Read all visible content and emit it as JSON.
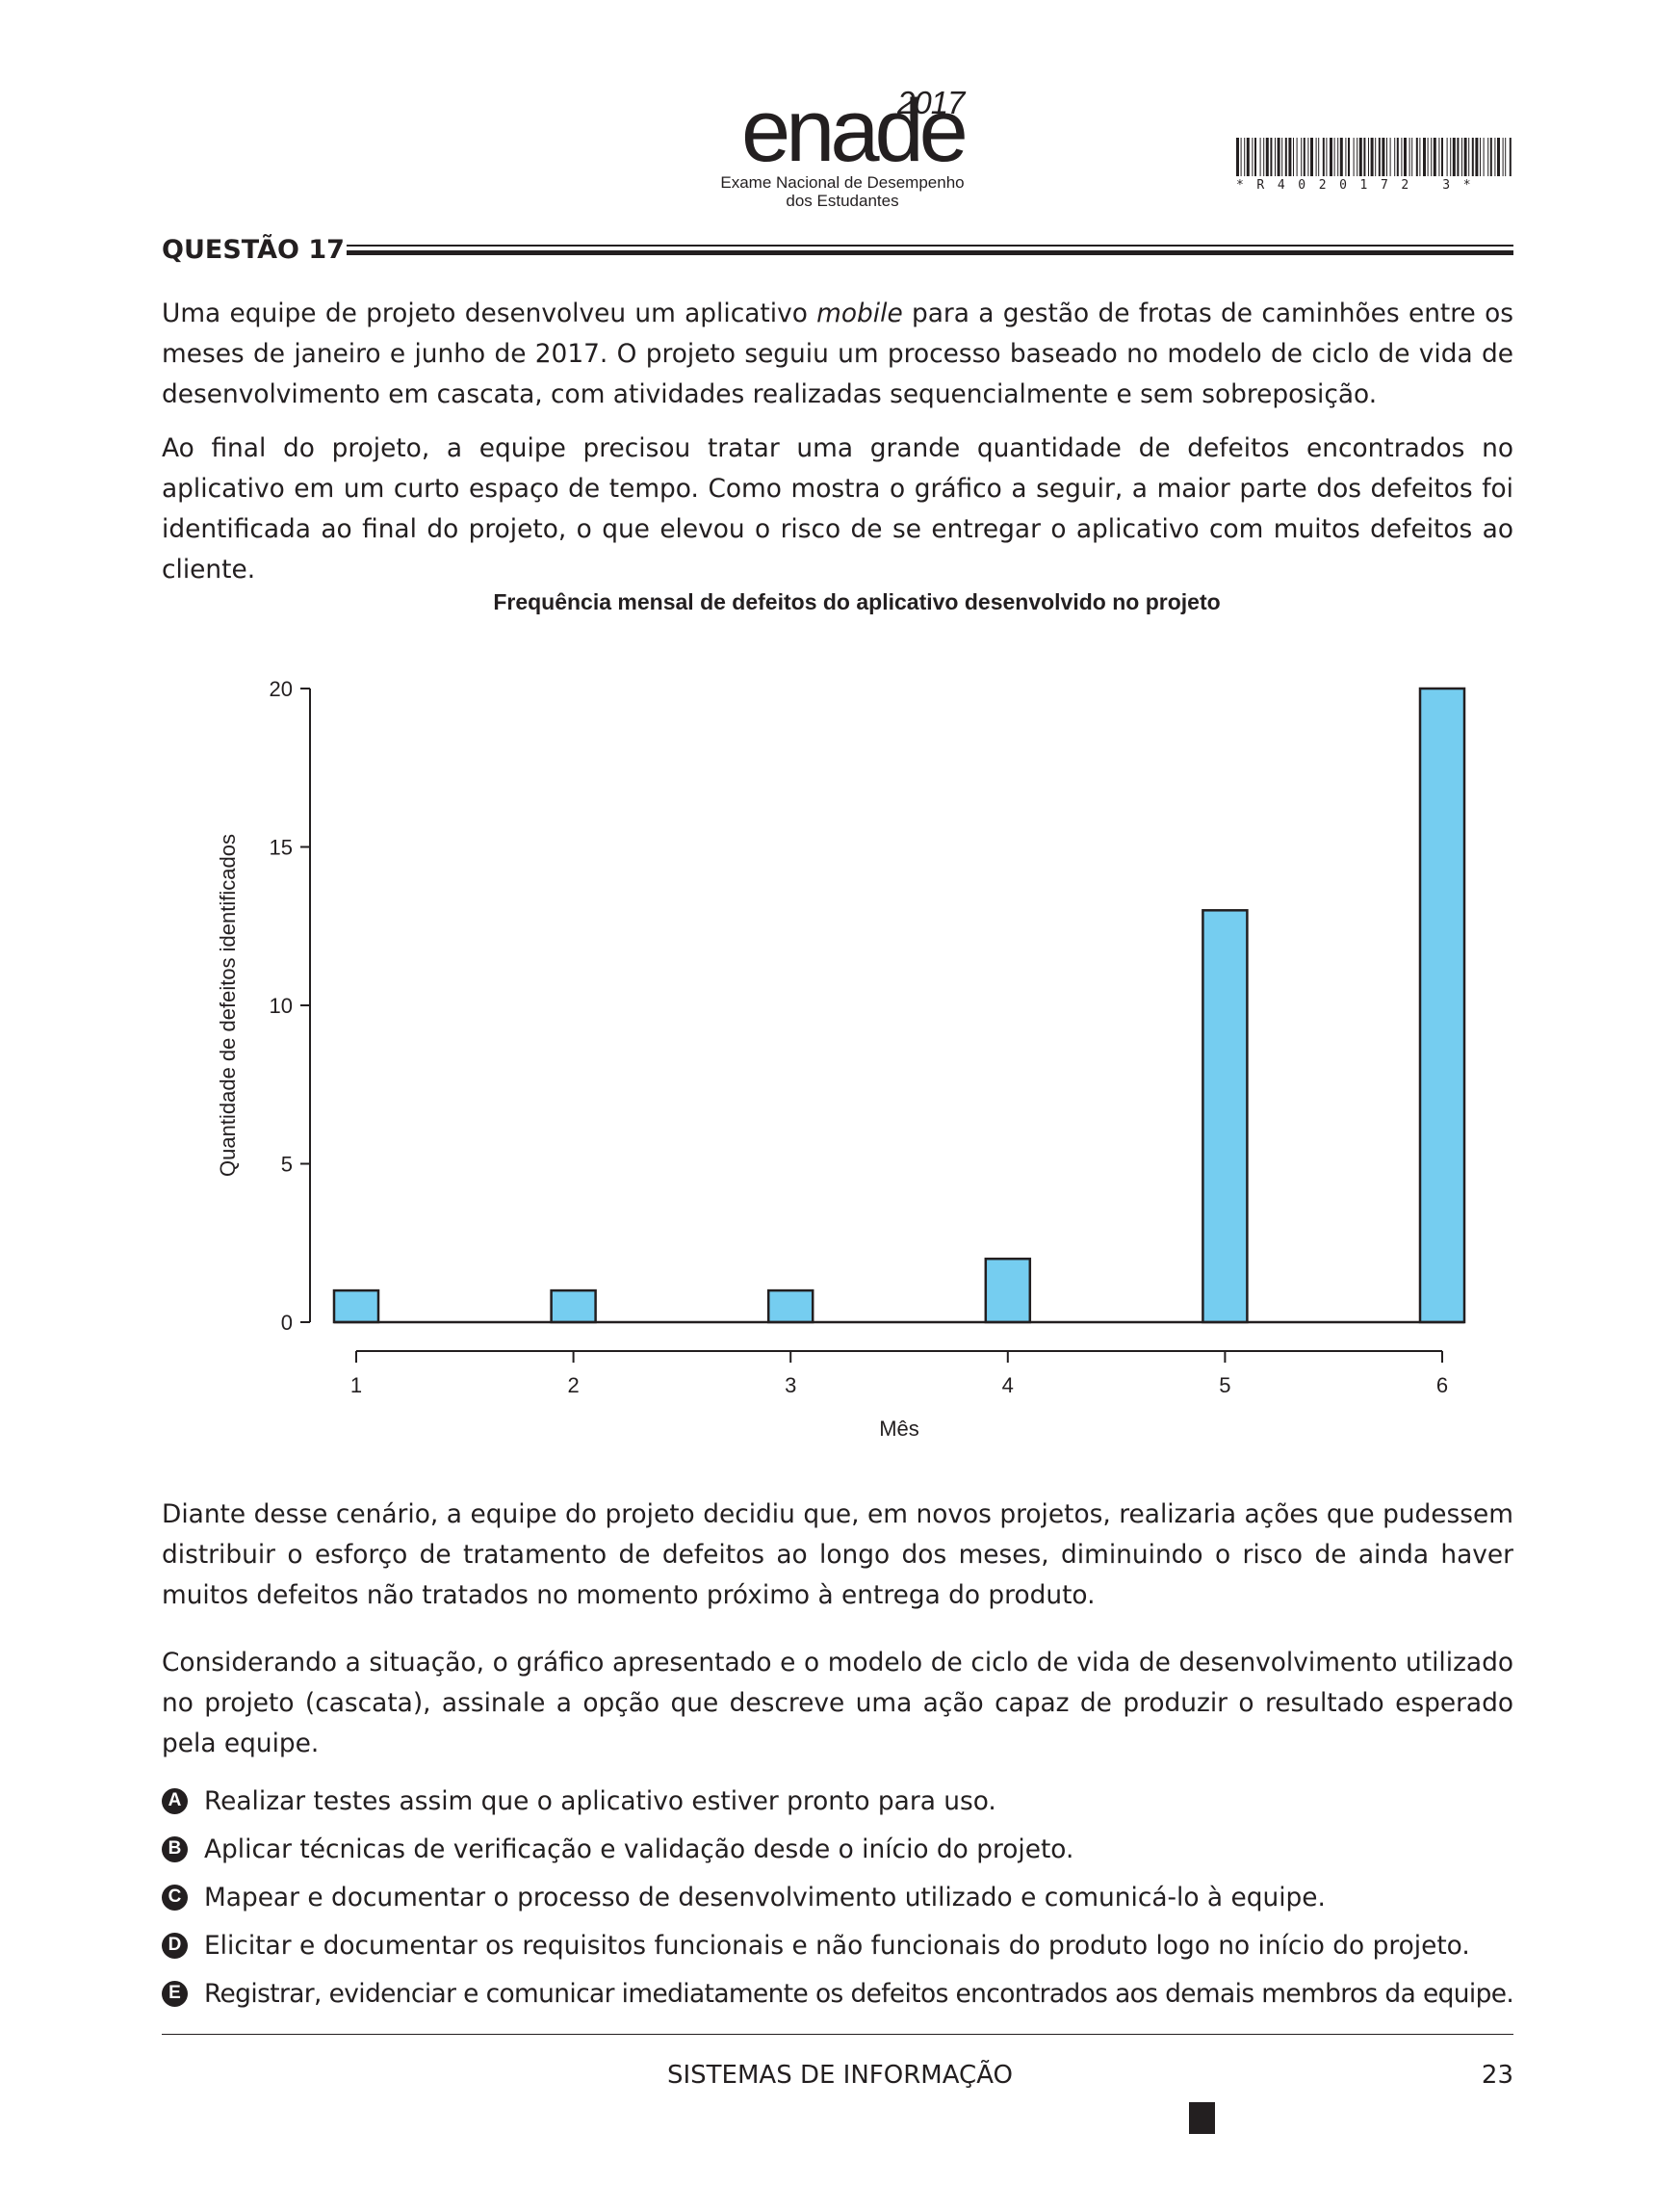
{
  "header": {
    "logo_word": "enade",
    "logo_year": "2017",
    "logo_sub1": "Exame Nacional de Desempenho",
    "logo_sub2": "dos Estudantes",
    "barcode_text": "*R4020172 3*"
  },
  "question": {
    "label": "QUESTÃO 17",
    "para1_pre": "Uma equipe de projeto desenvolveu um aplicativo ",
    "para1_em": "mobile",
    "para1_post": " para a gestão de frotas de caminhões entre os meses de janeiro e junho de 2017. O projeto seguiu um processo baseado no modelo de ciclo de vida de desenvolvimento em cascata, com atividades realizadas sequencialmente e sem sobreposição.",
    "para2": "Ao final do projeto, a equipe precisou tratar uma grande quantidade de defeitos encontrados no aplicativo em um curto espaço de tempo. Como mostra o gráfico a seguir, a maior parte dos defeitos foi identificada ao final do projeto, o que elevou o risco de se entregar o aplicativo com muitos defeitos ao cliente.",
    "para3": "Diante desse cenário, a equipe do projeto decidiu que, em novos projetos, realizaria ações que pudessem distribuir o esforço de tratamento de defeitos ao longo dos meses, diminuindo o risco de ainda haver muitos defeitos não tratados no momento próximo à entrega do produto.",
    "para4": "Considerando a situação, o gráfico apresentado e o modelo de ciclo de vida de desenvolvimento utilizado no projeto (cascata), assinale a opção que descreve uma ação capaz de produzir o resultado esperado pela equipe."
  },
  "chart_data": {
    "type": "bar",
    "title": "Frequência mensal de defeitos do aplicativo desenvolvido no projeto",
    "xlabel": "Mês",
    "ylabel": "Quantidade de defeitos identificados",
    "categories": [
      "1",
      "2",
      "3",
      "4",
      "5",
      "6"
    ],
    "values": [
      1,
      1,
      1,
      2,
      13,
      20
    ],
    "ylim": [
      0,
      20
    ],
    "yticks": [
      "0",
      "5",
      "10",
      "15",
      "20"
    ],
    "bar_color": "#75cdf0",
    "grid": false
  },
  "options": [
    {
      "letter": "A",
      "text": "Realizar testes assim que o aplicativo estiver pronto para uso."
    },
    {
      "letter": "B",
      "text": "Aplicar técnicas de verificação e validação desde o início do projeto."
    },
    {
      "letter": "C",
      "text": "Mapear e documentar o processo de desenvolvimento utilizado e comunicá-lo à equipe."
    },
    {
      "letter": "D",
      "text": "Elicitar e documentar os requisitos funcionais e não funcionais do produto logo no início do projeto."
    },
    {
      "letter": "E",
      "text": "Registrar, evidenciar e comunicar imediatamente os defeitos encontrados aos demais membros da equipe."
    }
  ],
  "footer": {
    "title": "SISTEMAS DE INFORMAÇÃO",
    "page_number": "23"
  }
}
